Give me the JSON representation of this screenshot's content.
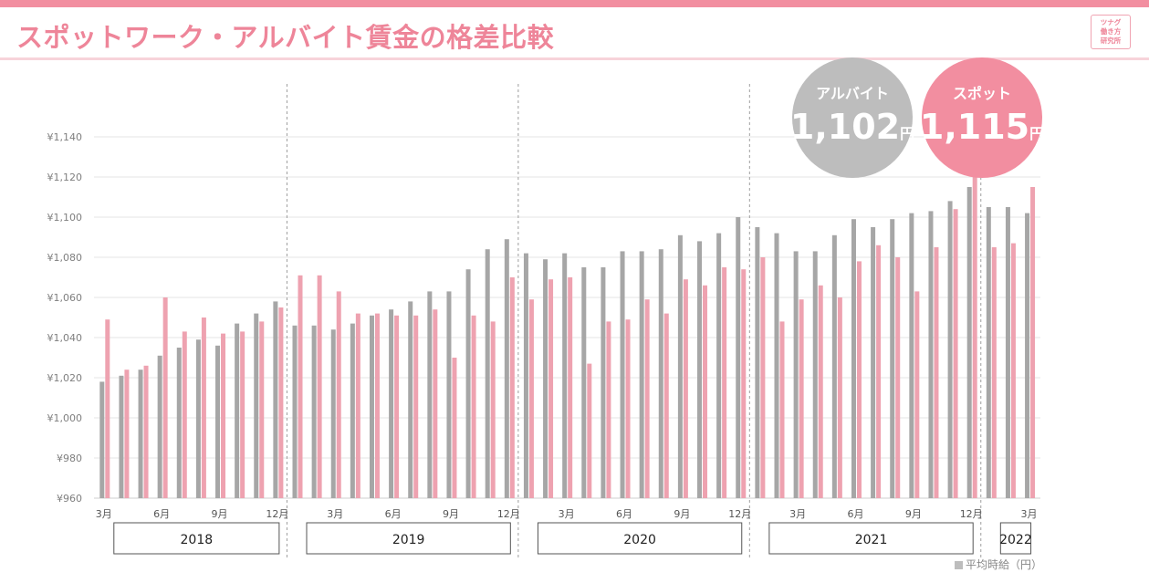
{
  "header": {
    "title": "スポットワーク・アルバイト賃金の格差比較",
    "logo_lines": [
      "ツナグ",
      "働き方",
      "研究所"
    ]
  },
  "colors": {
    "series_arubaito": "#a6a6a6",
    "series_spot": "#eea2b0",
    "bubble_arubaito": "#bdbdbd",
    "bubble_spot": "#f28ea0",
    "accent": "#f28ea0"
  },
  "callouts": [
    {
      "label": "アルバイト",
      "value": "1,102",
      "unit": "円"
    },
    {
      "label": "スポット",
      "value": "1,115",
      "unit": "円"
    }
  ],
  "legend": {
    "label": "平均時給（円）"
  },
  "chart_data": {
    "type": "bar",
    "ylim": [
      960,
      1140
    ],
    "yticks": [
      960,
      980,
      1000,
      1020,
      1040,
      1060,
      1080,
      1100,
      1120,
      1140
    ],
    "ytick_labels": [
      "¥960",
      "¥980",
      "¥1,000",
      "¥1,020",
      "¥1,040",
      "¥1,060",
      "¥1,080",
      "¥1,100",
      "¥1,120",
      "¥1,140"
    ],
    "grid": true,
    "categories": [
      "2018-03",
      "2018-04",
      "2018-05",
      "2018-06",
      "2018-07",
      "2018-08",
      "2018-09",
      "2018-10",
      "2018-11",
      "2018-12",
      "2019-01",
      "2019-02",
      "2019-03",
      "2019-04",
      "2019-05",
      "2019-06",
      "2019-07",
      "2019-08",
      "2019-09",
      "2019-10",
      "2019-11",
      "2019-12",
      "2020-01",
      "2020-02",
      "2020-03",
      "2020-04",
      "2020-05",
      "2020-06",
      "2020-07",
      "2020-08",
      "2020-09",
      "2020-10",
      "2020-11",
      "2020-12",
      "2021-01",
      "2021-02",
      "2021-03",
      "2021-04",
      "2021-05",
      "2021-06",
      "2021-07",
      "2021-08",
      "2021-09",
      "2021-10",
      "2021-11",
      "2021-12",
      "2022-01",
      "2022-02",
      "2022-03"
    ],
    "month_tick_labels": [
      {
        "index": 0,
        "label": "3月"
      },
      {
        "index": 3,
        "label": "6月"
      },
      {
        "index": 6,
        "label": "9月"
      },
      {
        "index": 9,
        "label": "12月"
      },
      {
        "index": 12,
        "label": "3月"
      },
      {
        "index": 15,
        "label": "6月"
      },
      {
        "index": 18,
        "label": "9月"
      },
      {
        "index": 21,
        "label": "12月"
      },
      {
        "index": 24,
        "label": "3月"
      },
      {
        "index": 27,
        "label": "6月"
      },
      {
        "index": 30,
        "label": "9月"
      },
      {
        "index": 33,
        "label": "12月"
      },
      {
        "index": 36,
        "label": "3月"
      },
      {
        "index": 39,
        "label": "6月"
      },
      {
        "index": 42,
        "label": "9月"
      },
      {
        "index": 45,
        "label": "12月"
      },
      {
        "index": 48,
        "label": "3月"
      }
    ],
    "year_groups": [
      {
        "label": "2018",
        "start": 0,
        "end": 9
      },
      {
        "label": "2019",
        "start": 10,
        "end": 21
      },
      {
        "label": "2020",
        "start": 22,
        "end": 33
      },
      {
        "label": "2021",
        "start": 34,
        "end": 45
      },
      {
        "label": "2022",
        "start": 46,
        "end": 48
      }
    ],
    "series": [
      {
        "name": "アルバイト",
        "values": [
          1018,
          1021,
          1024,
          1031,
          1035,
          1039,
          1036,
          1047,
          1052,
          1058,
          1046,
          1046,
          1044,
          1047,
          1051,
          1054,
          1058,
          1063,
          1063,
          1074,
          1084,
          1089,
          1082,
          1079,
          1082,
          1075,
          1075,
          1083,
          1083,
          1084,
          1091,
          1088,
          1092,
          1100,
          1095,
          1092,
          1083,
          1083,
          1091,
          1099,
          1095,
          1099,
          1102,
          1103,
          1108,
          1115,
          1105,
          1105,
          1102
        ]
      },
      {
        "name": "スポット",
        "values": [
          1049,
          1024,
          1026,
          1060,
          1043,
          1050,
          1042,
          1043,
          1048,
          1055,
          1071,
          1071,
          1063,
          1052,
          1052,
          1051,
          1051,
          1054,
          1030,
          1051,
          1048,
          1070,
          1059,
          1069,
          1070,
          1027,
          1048,
          1049,
          1059,
          1052,
          1069,
          1066,
          1075,
          1074,
          1080,
          1048,
          1059,
          1066,
          1060,
          1078,
          1086,
          1080,
          1063,
          1085,
          1104,
          1120,
          1085,
          1087,
          1115
        ]
      }
    ]
  }
}
